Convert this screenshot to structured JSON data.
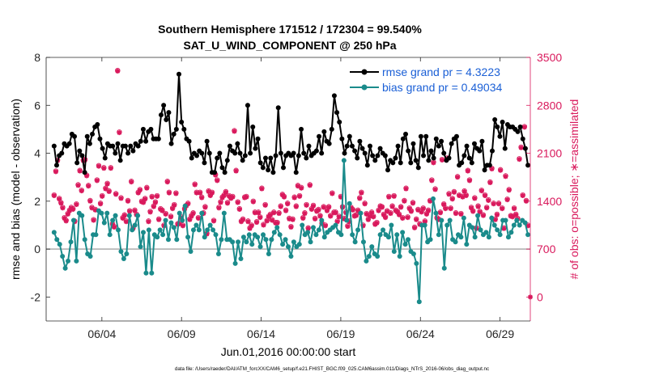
{
  "chart_data": {
    "type": "line",
    "title": "Southern Hemisphere 171512 / 172304 = 99.540%",
    "subtitle": "SAT_U_WIND_COMPONENT @ 250 hPa",
    "xlabel": "Jun.01,2016 00:00:00 start",
    "ylabel_left": "rmse and bias (model - observation)",
    "ylabel_right": "# of obs: o=possible; ∗=assimilated",
    "footnote": "data file: /Users/raeder/DAI/ATM_forcXX/CAM6_setup/f.e21.FHIST_BGC.f09_025.CAM6assim.011/Diags_NTrS_2016-06/obs_diag_output.nc",
    "x_range": [
      0.5,
      30.9
    ],
    "ylim_left": [
      -3,
      8
    ],
    "ylim_right": [
      -350,
      3500
    ],
    "x_ticks": [
      {
        "value": 4,
        "label": "06/04"
      },
      {
        "value": 9,
        "label": "06/09"
      },
      {
        "value": 14,
        "label": "06/14"
      },
      {
        "value": 19,
        "label": "06/19"
      },
      {
        "value": 24,
        "label": "06/24"
      },
      {
        "value": 29,
        "label": "06/29"
      }
    ],
    "y_ticks_left": [
      -2,
      0,
      2,
      4,
      6,
      8
    ],
    "y_ticks_right": [
      0,
      700,
      1400,
      2100,
      2800,
      3500
    ],
    "colors": {
      "rmse": "#000000",
      "bias": "#1a8b8b",
      "obs": "#d9195c",
      "right_axis": "#d9195c",
      "legend_text": "#1a5fd6",
      "zero_line": "#b3b3b3"
    },
    "series": [
      {
        "name": "rmse grand pr = 4.3223",
        "axis": "left",
        "values": [
          4.3,
          3.5,
          3.9,
          4.0,
          4.4,
          4.3,
          4.4,
          4.8,
          4.7,
          3.6,
          4.1,
          3.9,
          3.2,
          4.7,
          4.4,
          4.8,
          5.1,
          5.2,
          4.6,
          4.2,
          3.8,
          4.4,
          4.3,
          4.3,
          4.0,
          4.4,
          3.7,
          4.3,
          4.3,
          4.0,
          4.3,
          4.1,
          4.4,
          4.3,
          4.5,
          5.0,
          4.5,
          4.9,
          5.0,
          4.6,
          4.6,
          4.6,
          5.6,
          6.0,
          5.4,
          5.7,
          4.4,
          4.8,
          5.0,
          7.3,
          5.3,
          5.0,
          4.6,
          4.5,
          3.8,
          4.0,
          3.9,
          4.1,
          4.0,
          3.6,
          4.5,
          4.0,
          3.2,
          3.2,
          3.8,
          4.0,
          3.4,
          3.2,
          3.7,
          4.3,
          4.1,
          4.0,
          4.4,
          4.0,
          3.7,
          3.9,
          6.0,
          4.0,
          5.1,
          4.2,
          4.6,
          3.6,
          3.4,
          3.8,
          3.3,
          3.8,
          3.2,
          3.9,
          5.9,
          4.0,
          3.4,
          3.9,
          4.0,
          3.9,
          4.0,
          3.2,
          3.9,
          5.0,
          4.0,
          3.8,
          4.3,
          3.9,
          4.0,
          4.1,
          4.7,
          4.0,
          4.9,
          4.5,
          4.4,
          5.0,
          6.4,
          5.7,
          5.3,
          4.6,
          4.0,
          4.3,
          4.7,
          4.3,
          4.1,
          3.8,
          4.5,
          4.2,
          4.0,
          3.5,
          4.3,
          3.9,
          3.7,
          3.9,
          4.2,
          4.0,
          3.9,
          3.3,
          3.7,
          3.6,
          3.8,
          4.3,
          3.6,
          4.6,
          4.8,
          4.1,
          3.6,
          4.4,
          3.7,
          3.4,
          4.7,
          3.9,
          4.7,
          3.7,
          4.1,
          3.8,
          4.6,
          4.3,
          4.5,
          4.0,
          3.7,
          3.8,
          4.4,
          4.6,
          4.7,
          3.5,
          3.6,
          3.9,
          4.3,
          3.8,
          3.6,
          4.4,
          4.2,
          4.1,
          4.5,
          3.3,
          3.5,
          3.5,
          4.1,
          5.4,
          5.1,
          4.7,
          5.3,
          4.2,
          5.2,
          5.1,
          5.1,
          5.0,
          4.9,
          5.1,
          4.6,
          4.2,
          3.5
        ]
      },
      {
        "name": "bias grand pr = 0.49034",
        "axis": "left",
        "values": [
          0.7,
          0.4,
          0.2,
          -0.3,
          -0.8,
          -0.5,
          0.3,
          1.2,
          -0.5,
          1.5,
          1.4,
          0.4,
          -0.2,
          -0.3,
          0.6,
          0.6,
          1.6,
          1.5,
          1.1,
          1.5,
          0.6,
          1.2,
          1.4,
          0.8,
          -0.1,
          -0.4,
          -0.2,
          1.4,
          0.8,
          1.0,
          1.4,
          0.1,
          0.7,
          -1.0,
          0.8,
          -1.0,
          0.6,
          0.5,
          0.8,
          0.6,
          1.2,
          0.4,
          1.1,
          0.9,
          0.4,
          1.5,
          1.2,
          1.8,
          0.5,
          -0.1,
          0.8,
          1.0,
          0.8,
          1.5,
          0.5,
          0.8,
          1.0,
          0.8,
          0.6,
          -0.2,
          0.4,
          1.5,
          0.4,
          0.4,
          0.3,
          -0.6,
          0.3,
          -0.4,
          0.5,
          0.3,
          0.6,
          0.2,
          0.6,
          0.5,
          0.1,
          0.6,
          0.4,
          -0.2,
          0.4,
          0.7,
          0.9,
          0.6,
          0.2,
          0.4,
          0.1,
          -0.3,
          0.3,
          0.1,
          0.2,
          1.0,
          0.6,
          0.7,
          0.3,
          0.9,
          0.6,
          0.8,
          1.2,
          0.5,
          0.7,
          0.8,
          0.9,
          1.0,
          0.7,
          0.6,
          3.7,
          1.2,
          1.9,
          0.6,
          0.3,
          0.8,
          1.5,
          0.3,
          -0.5,
          -0.3,
          0.1,
          -0.2,
          -0.3,
          0.6,
          0.8,
          0.6,
          0.5,
          1.0,
          -0.1,
          0.6,
          -0.3,
          0.7,
          0.2,
          0.4,
          -0.1,
          -0.2,
          -0.6,
          -2.2,
          1.0,
          1.0,
          0.3,
          0.4,
          2.1,
          1.5,
          0.6,
          1.2,
          -0.8,
          1.0,
          1.2,
          0.4,
          0.3,
          0.6,
          0.5,
          1.3,
          0.2,
          1.0,
          0.9,
          0.5,
          1.4,
          0.8,
          0.6,
          0.7,
          0.5,
          1.3,
          1.0,
          0.8,
          0.6,
          1.2,
          1.2,
          0.5,
          0.7,
          1.0,
          1.2,
          1.0,
          1.2,
          1.1,
          0.6
        ]
      },
      {
        "name": "# of obs assimilated",
        "axis": "right",
        "values": [
          1480,
          1830,
          1990,
          1430,
          1370,
          1300,
          1150,
          1110,
          1210,
          1260,
          1300,
          1280,
          1100,
          1350,
          1630,
          1840,
          1550,
          1990,
          2000,
          1770,
          1620,
          1400,
          1300,
          1120,
          1270,
          1700,
          1910,
          1360,
          1470,
          1880,
          1580,
          1650,
          1540,
          1880,
          1060,
          1020,
          1500,
          3300,
          2400,
          1440,
          1150,
          1190,
          1100,
          1400,
          1250,
          1680,
          1000,
          1260,
          1200,
          1520,
          1560,
          1390,
          1380,
          1430,
          1590,
          1100,
          1240,
          1460,
          1320,
          1380,
          1470,
          1130,
          1280,
          1260,
          1040,
          1210,
          1680,
          1520,
          1170,
          1290,
          1340,
          1510,
          1060,
          1070,
          1160,
          1040,
          1280,
          1330,
          1360,
          1130,
          1180,
          1220,
          1640,
          1520,
          1150,
          1520,
          1450,
          1220,
          1310,
          920,
          1540,
          1480,
          1520,
          1110,
          1780,
          1700,
          1300,
          1380,
          1450,
          1480,
          1530,
          1370,
          1470,
          1440,
          1460,
          2420,
          1840,
          1380,
          1280,
          1100,
          1130,
          1450,
          1460,
          1100,
          1000,
          1040,
          1390,
          1230,
          1090,
          1230,
          1160,
          1580,
          1050,
          1340,
          1110,
          1170,
          1200,
          1120,
          1230,
          1080,
          1080,
          1220,
          1320,
          1490,
          1460,
          1260,
          1360,
          1140,
          1020,
          1130,
          1450,
          1320,
          1620,
          1470,
          1590,
          1150,
          1220,
          1340,
          1000,
          1630,
          1280,
          1330,
          1140,
          1250,
          1270,
          1180,
          1070,
          1310,
          1040,
          1260,
          1310,
          1180,
          1510,
          1230,
          1230,
          1100,
          1170,
          1460,
          1310,
          1140,
          1230,
          1030,
          1100,
          1300,
          1270,
          1180,
          1190,
          1260,
          1440,
          1520,
          1040,
          1360,
          1210,
          1130,
          1180,
          1230,
          1170,
          1060,
          1080,
          1260,
          1320,
          1310,
          1200,
          1160,
          1250,
          1460,
          1220,
          1320,
          1470,
          1260,
          1240,
          1200,
          1310,
          1150,
          1400,
          1580,
          1160,
          1290,
          1250,
          1370,
          1010,
          1130,
          1270,
          1060,
          1240,
          1290,
          1100,
          1210,
          1260,
          1400,
          1700,
          1960,
          1570,
          1150,
          1130,
          1230,
          2000,
          1350,
          1290,
          2020,
          1500,
          1290,
          1430,
          1530,
          1220,
          1750,
          1480,
          1210,
          1460,
          1540,
          1480,
          1840,
          1700,
          1300,
          1250,
          1440,
          1000,
          1320,
          1240,
          1550,
          1190,
          1480,
          1300,
          1410,
          1670,
          1870,
          1360,
          1130,
          1200,
          1360,
          1850,
          1290,
          1000,
          1760,
          1420,
          1560,
          1180,
          1170,
          1290,
          1200,
          1140,
          2010,
          2180,
          1480,
          2480,
          1400,
          1040
        ]
      },
      {
        "name": "# of obs possible",
        "axis": "right",
        "values": [
          1490,
          1840,
          2000,
          1440,
          1380,
          1310,
          1160,
          1120,
          1220,
          1270,
          1310,
          1290,
          1110,
          1360,
          1640,
          1850,
          1560,
          2000,
          2010,
          1780,
          1630,
          1410,
          1310,
          1130,
          1280,
          1710,
          1920,
          1370,
          1480,
          1890,
          1590,
          1660,
          1550,
          1890,
          1070,
          1030,
          1510,
          3310,
          2410,
          1450,
          1160,
          1200,
          1110,
          1410,
          1260,
          1690,
          1010,
          1270,
          1210,
          1530,
          1570,
          1400,
          1390,
          1440,
          1600,
          1110,
          1250,
          1470,
          1330,
          1390,
          1480,
          1140,
          1290,
          1270,
          1050,
          1220,
          1690,
          1530,
          1180,
          1300,
          1350,
          1520,
          1070,
          1080,
          1170,
          1050,
          1290,
          1340,
          1370,
          1140,
          1190,
          1230,
          1650,
          1530,
          1160,
          1530,
          1460,
          1230,
          1320,
          930,
          1550,
          1490,
          1530,
          1120,
          1790,
          1710,
          1310,
          1390,
          1460,
          1490,
          1540,
          1380,
          1480,
          1450,
          1470,
          2430,
          1850,
          1390,
          1290,
          1110,
          1140,
          1460,
          1470,
          1110,
          1010,
          1050,
          1400,
          1240,
          1100,
          1240,
          1170,
          1590,
          1060,
          1350,
          1120,
          1180,
          1210,
          1130,
          1240,
          1090,
          1090,
          1230,
          1330,
          1500,
          1470,
          1270,
          1370,
          1150,
          1030,
          1140,
          1460,
          1330,
          1630,
          1480,
          1600,
          1160,
          1230,
          1350,
          1010,
          1640,
          1290,
          1340,
          1150,
          1260,
          1280,
          1190,
          1080,
          1320,
          1050,
          1270,
          1320,
          1190,
          1520,
          1240,
          1240,
          1110,
          1180,
          1470,
          1320,
          1150,
          1240,
          1040,
          1110,
          1310,
          1280,
          1190,
          1200,
          1270,
          1450,
          1530,
          1050,
          1370,
          1220,
          1140,
          1190,
          1240,
          1180,
          1070,
          1090,
          1270,
          1330,
          1320,
          1210,
          1170,
          1260,
          1470,
          1230,
          1330,
          1480,
          1270,
          1250,
          1210,
          1320,
          1160,
          1410,
          1590,
          1170,
          1300,
          1260,
          1380,
          1020,
          1140,
          1280,
          1070,
          1250,
          1300,
          1110,
          1220,
          1270,
          1410,
          1710,
          1970,
          1580,
          1160,
          1140,
          1240,
          2010,
          1360,
          1300,
          2030,
          1510,
          1300,
          1440,
          1540,
          1230,
          1760,
          1490,
          1220,
          1470,
          1550,
          1490,
          1850,
          1710,
          1310,
          1260,
          1450,
          1010,
          1330,
          1250,
          1560,
          1200,
          1490,
          1310,
          1420,
          1680,
          1880,
          1370,
          1140,
          1210,
          1370,
          1860,
          1300,
          1010,
          1770,
          1430,
          1570,
          1190,
          1180,
          1300,
          1210,
          1150,
          2020,
          2190,
          1490,
          2490,
          1410,
          1050
        ]
      }
    ],
    "extra_points": [
      {
        "name": "right-axis marker",
        "x": 30.9,
        "y_right": 0
      }
    ]
  }
}
